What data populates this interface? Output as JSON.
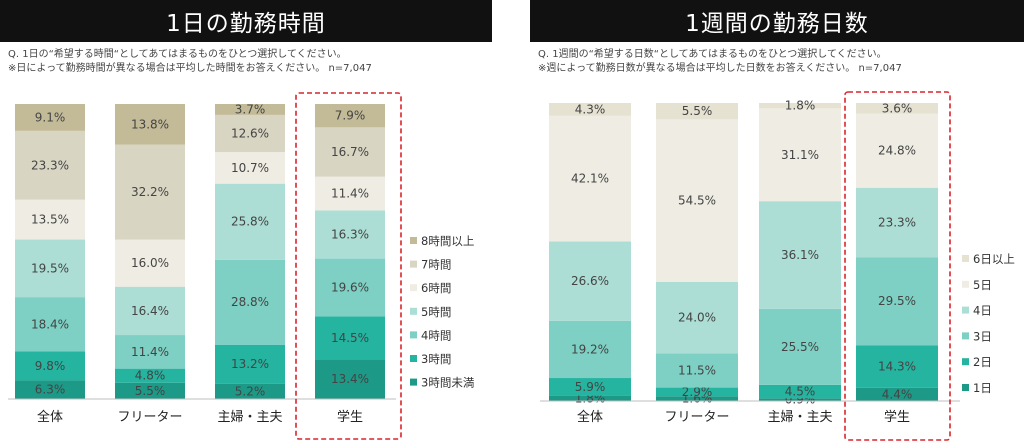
{
  "charts": {
    "left": {
      "title": "1日の勤務時間",
      "question_line1": "Q. 1日の“希望する時間“としてあてはまるものをひとつ選択してください。",
      "question_line2": "※日によって勤務時間が異なる場合は平均した時間をお答えください。 n=7,047"
    },
    "right": {
      "title": "1週間の勤務日数",
      "question_line1": "Q. 1週間の“希望する日数“としてあてはまるものをひとつ選択してください。",
      "question_line2": "※週によって勤務日数が異なる場合は平均した日数をお答えください。 n=7,047"
    }
  },
  "colors": {
    "left": [
      "#1c9a87",
      "#24b4a0",
      "#7dd0c3",
      "#acded6",
      "#efede3",
      "#d9d5c3",
      "#c3bb98"
    ],
    "right": [
      "#1c9a87",
      "#24b4a0",
      "#7dd0c3",
      "#acded6",
      "#efede3",
      "#e6e2d2"
    ],
    "highlight": "#d9252b"
  },
  "chart_data": [
    {
      "type": "bar",
      "stacked": true,
      "percent": true,
      "title": "1日の勤務時間",
      "categories": [
        "全体",
        "フリーター",
        "主婦・主夫",
        "学生"
      ],
      "highlighted_category": "学生",
      "legend_position": "right",
      "series": [
        {
          "name": "3時間未満",
          "values": [
            6.3,
            5.5,
            5.2,
            13.4
          ]
        },
        {
          "name": "3時間",
          "values": [
            9.8,
            4.8,
            13.2,
            14.5
          ]
        },
        {
          "name": "4時間",
          "values": [
            18.4,
            11.4,
            28.8,
            19.6
          ]
        },
        {
          "name": "5時間",
          "values": [
            19.5,
            16.4,
            25.8,
            16.3
          ]
        },
        {
          "name": "6時間",
          "values": [
            13.5,
            16.0,
            10.7,
            11.4
          ]
        },
        {
          "name": "7時間",
          "values": [
            23.3,
            32.2,
            12.6,
            16.7
          ]
        },
        {
          "name": "8時間以上",
          "values": [
            9.1,
            13.8,
            3.7,
            7.9
          ]
        }
      ],
      "labels": [
        [
          "6.3%",
          "5.5%",
          "5.2%",
          "13.4%"
        ],
        [
          "9.8%",
          "4.8%",
          "13.2%",
          "14.5%"
        ],
        [
          "18.4%",
          "11.4%",
          "28.8%",
          "19.6%"
        ],
        [
          "19.5%",
          "16.4%",
          "25.8%",
          "16.3%"
        ],
        [
          "13.5%",
          "16.0%",
          "10.7%",
          "11.4%"
        ],
        [
          "23.3%",
          "32.2%",
          "12.6%",
          "16.7%"
        ],
        [
          "9.1%",
          "13.8%",
          "3.7%",
          "7.9%"
        ]
      ]
    },
    {
      "type": "bar",
      "stacked": true,
      "percent": true,
      "title": "1週間の勤務日数",
      "categories": [
        "全体",
        "フリーター",
        "主婦・主夫",
        "学生"
      ],
      "highlighted_category": "学生",
      "legend_position": "right",
      "series": [
        {
          "name": "1日",
          "values": [
            1.8,
            1.6,
            0.9,
            4.4
          ]
        },
        {
          "name": "2日",
          "values": [
            5.9,
            2.9,
            4.5,
            14.3
          ]
        },
        {
          "name": "3日",
          "values": [
            19.2,
            11.5,
            25.5,
            29.5
          ]
        },
        {
          "name": "4日",
          "values": [
            26.6,
            24.0,
            36.1,
            23.3
          ]
        },
        {
          "name": "5日",
          "values": [
            42.1,
            54.5,
            31.1,
            24.8
          ]
        },
        {
          "name": "6日以上",
          "values": [
            4.3,
            5.5,
            1.8,
            3.6
          ]
        }
      ],
      "labels": [
        [
          "1.8%",
          "1.6%",
          "0.9%",
          "4.4%"
        ],
        [
          "5.9%",
          "2.9%",
          "4.5%",
          "14.3%"
        ],
        [
          "19.2%",
          "11.5%",
          "25.5%",
          "29.5%"
        ],
        [
          "26.6%",
          "24.0%",
          "36.1%",
          "23.3%"
        ],
        [
          "42.1%",
          "54.5%",
          "31.1%",
          "24.8%"
        ],
        [
          "4.3%",
          "5.5%",
          "1.8%",
          "3.6%"
        ]
      ]
    }
  ]
}
